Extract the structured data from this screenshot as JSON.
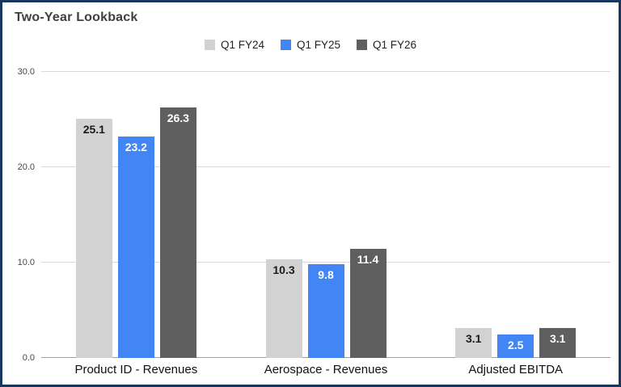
{
  "frame": {
    "border_color": "#17375e",
    "background": "#ffffff"
  },
  "chart": {
    "title": "Two-Year Lookback"
  },
  "chart_data": {
    "type": "bar",
    "title": "Two-Year Lookback",
    "categories": [
      "Product ID - Revenues",
      "Aerospace - Revenues",
      "Adjusted EBITDA"
    ],
    "series": [
      {
        "name": "Q1 FY24",
        "color": "#d2d2d2",
        "label_color": "#1a1a1a",
        "values": [
          25.1,
          10.3,
          3.1
        ]
      },
      {
        "name": "Q1 FY25",
        "color": "#4285f4",
        "label_color": "#ffffff",
        "values": [
          23.2,
          9.8,
          2.5
        ]
      },
      {
        "name": "Q1 FY26",
        "color": "#5f5f5f",
        "label_color": "#ffffff",
        "values": [
          26.3,
          11.4,
          3.1
        ]
      }
    ],
    "ylim": [
      0,
      30
    ],
    "yticks": {
      "values": [
        0,
        10,
        20,
        30
      ],
      "labels": [
        "0.0",
        "10.0",
        "20.0",
        "30.0"
      ]
    },
    "grid": true,
    "legend_position": "top-center",
    "value_label_format": "one-decimal"
  }
}
